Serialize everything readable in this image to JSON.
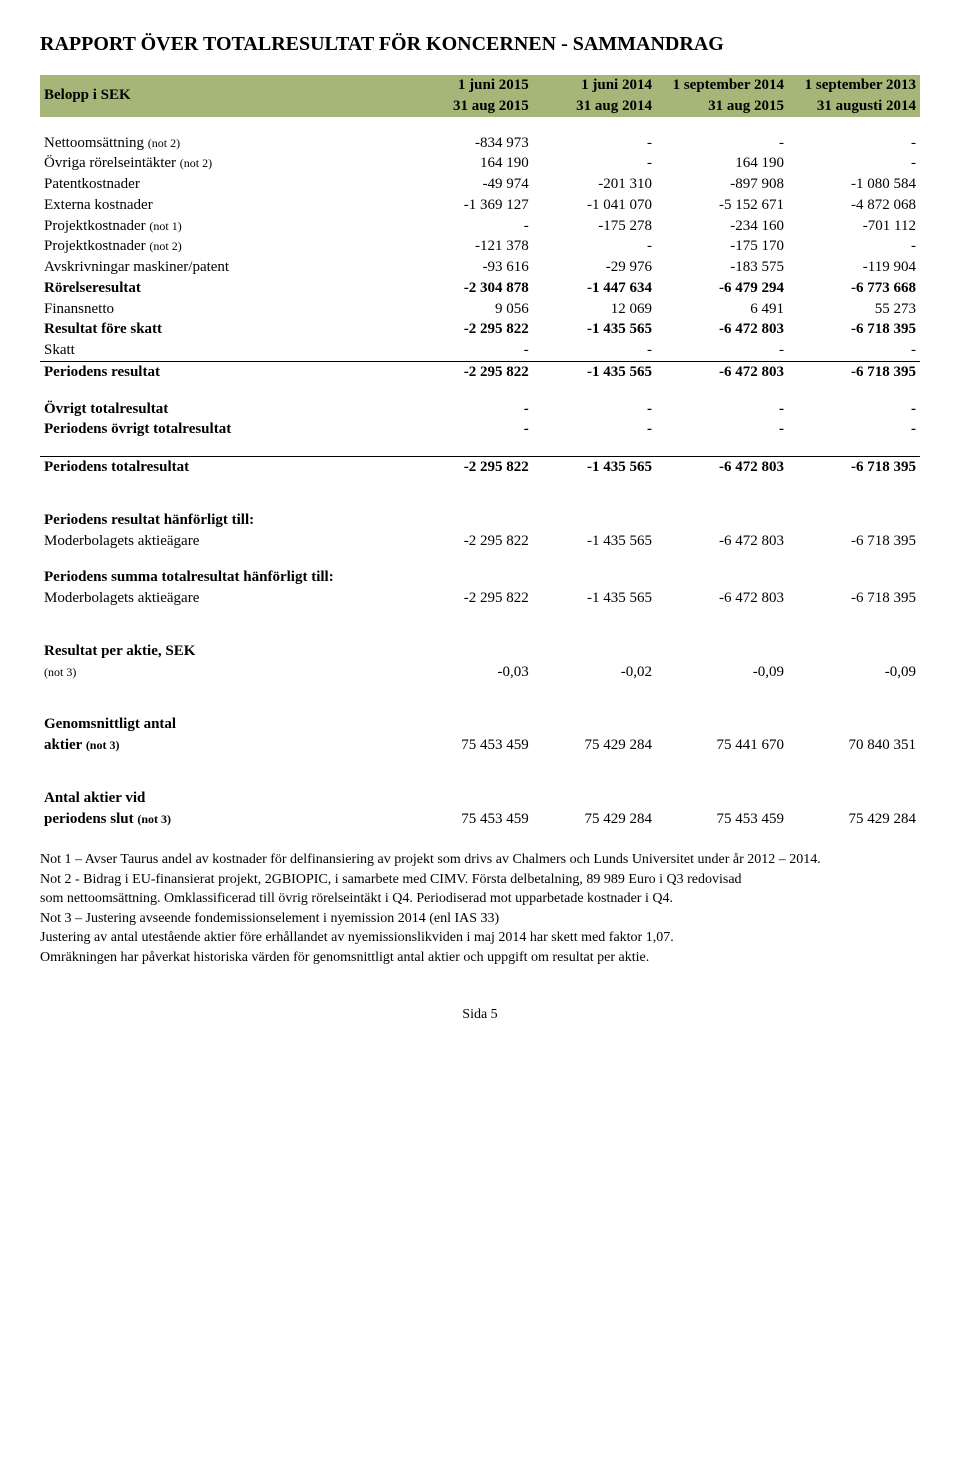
{
  "title": "RAPPORT ÖVER TOTALRESULTAT FÖR KONCERNEN - SAMMANDRAG",
  "header": {
    "label": "Belopp i SEK",
    "c1a": "1 juni 2015",
    "c1b": "31 aug 2015",
    "c2a": "1 juni  2014",
    "c2b": "31 aug 2014",
    "c3a": "1 september 2014",
    "c3b": "31 aug 2015",
    "c4a": "1 september 2013",
    "c4b": "31 augusti 2014"
  },
  "rows_main": [
    {
      "label": "Nettoomsättning (not 2)",
      "v": [
        "-834 973",
        "-",
        "-",
        "-"
      ],
      "bold": false
    },
    {
      "label": "Övriga rörelseintäkter (not 2)",
      "v": [
        "164 190",
        "-",
        "164 190",
        "-"
      ],
      "bold": false
    },
    {
      "label": "Patentkostnader",
      "v": [
        "-49 974",
        "-201 310",
        "-897 908",
        "-1 080 584"
      ],
      "bold": false
    },
    {
      "label": "Externa kostnader",
      "v": [
        "-1 369 127",
        "-1 041 070",
        "-5 152 671",
        "-4 872 068"
      ],
      "bold": false
    },
    {
      "label": "Projektkostnader (not 1)",
      "v": [
        "-",
        "-175 278",
        "-234 160",
        "-701 112"
      ],
      "bold": false
    },
    {
      "label": "Projektkostnader (not 2)",
      "v": [
        "-121 378",
        "-",
        "-175 170",
        "-"
      ],
      "bold": false
    },
    {
      "label": "Avskrivningar maskiner/patent",
      "v": [
        "-93 616",
        "-29 976",
        "-183 575",
        "-119 904"
      ],
      "bold": false
    },
    {
      "label": "Rörelseresultat",
      "v": [
        "-2 304 878",
        "-1 447 634",
        "-6 479 294",
        "-6 773 668"
      ],
      "bold": true
    },
    {
      "label": "Finansnetto",
      "v": [
        "9 056",
        "12 069",
        "6 491",
        "55 273"
      ],
      "bold": false
    },
    {
      "label": "Resultat före skatt",
      "v": [
        "-2 295 822",
        "-1 435 565",
        "-6 472 803",
        "-6 718 395"
      ],
      "bold": true
    },
    {
      "label": "Skatt",
      "v": [
        "-",
        "-",
        "-",
        "-"
      ],
      "bold": false
    }
  ],
  "periodens_resultat": {
    "label": "Periodens resultat",
    "v": [
      "-2 295 822",
      "-1 435 565",
      "-6 472 803",
      "-6 718 395"
    ]
  },
  "ovrigt_total": {
    "label": "Övrigt totalresultat",
    "v": [
      "-",
      "-",
      "-",
      "-"
    ]
  },
  "periodens_ovrigt": {
    "label": "Periodens övrigt totalresultat",
    "v": [
      "-",
      "-",
      "-",
      "-"
    ]
  },
  "periodens_totalresultat": {
    "label": "Periodens totalresultat",
    "v": [
      "-2 295 822",
      "-1 435 565",
      "-6 472 803",
      "-6 718 395"
    ]
  },
  "hanforligt_header": "Periodens resultat hänförligt till:",
  "moderbolag1": {
    "label": "Moderbolagets aktieägare",
    "v": [
      "-2 295 822",
      "-1 435 565",
      "-6 472 803",
      "-6 718 395"
    ]
  },
  "summa_total_header": "Periodens summa totalresultat hänförligt till:",
  "moderbolag2": {
    "label": "Moderbolagets aktieägare",
    "v": [
      "-2 295 822",
      "-1 435 565",
      "-6 472 803",
      "-6 718 395"
    ]
  },
  "res_per_aktie_header": "Resultat per aktie, SEK",
  "res_per_aktie": {
    "label": " (not 3)",
    "v": [
      "-0,03",
      "-0,02",
      "-0,09",
      "-0,09"
    ]
  },
  "genomsnitt_header": "Genomsnittligt antal",
  "genomsnitt": {
    "label": "aktier (not 3)",
    "v": [
      "75 453 459",
      "75 429 284",
      "75 441 670",
      "70 840 351"
    ]
  },
  "antal_aktier_header": "Antal aktier vid",
  "antal_aktier": {
    "label": "periodens slut (not 3)",
    "v": [
      "75 453 459",
      "75 429 284",
      "75 453 459",
      "75 429 284"
    ]
  },
  "notes": [
    "Not 1 – Avser Taurus andel av kostnader för delfinansiering av projekt som drivs av Chalmers och Lunds Universitet under år 2012 – 2014.",
    "Not 2 -  Bidrag i EU-finansierat projekt, 2GBIOPIC, i samarbete med CIMV. Första delbetalning, 89 989 Euro i Q3 redovisad",
    "som nettoomsättning. Omklassificerad till övrig rörelseintäkt i Q4. Periodiserad mot upparbetade kostnader i Q4.",
    "Not 3 – Justering avseende fondemissionselement i nyemission 2014 (enl IAS 33)",
    "Justering av antal utestående aktier före erhållandet av nyemissionslikviden i maj 2014 har skett med faktor 1,07.",
    "Omräkningen har påverkat historiska värden för genomsnittligt antal aktier och uppgift om resultat per aktie."
  ],
  "footer": "Sida 5"
}
